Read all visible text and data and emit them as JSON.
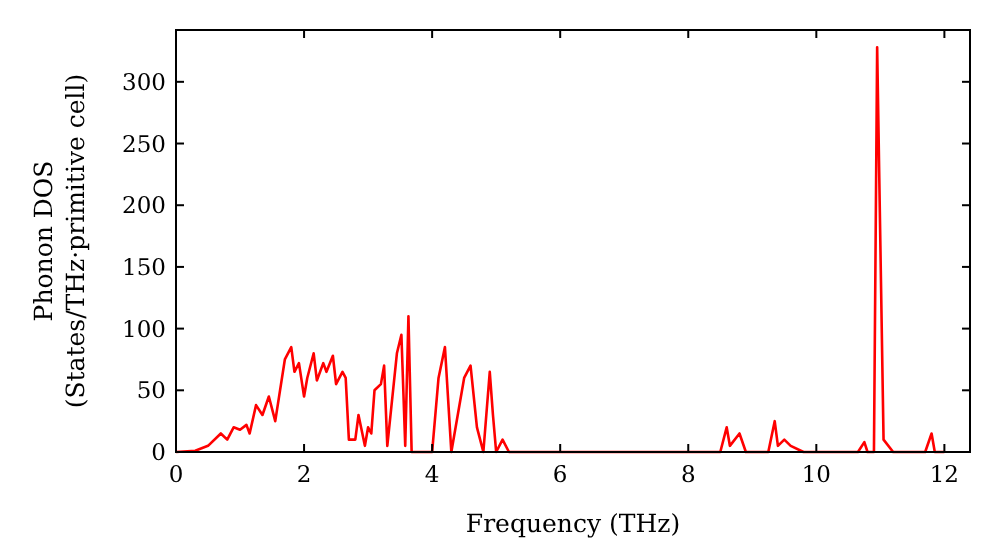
{
  "chart_data": {
    "type": "line",
    "xlabel": "Frequency (THz)",
    "ylabel": "Phonon DOS\n(States/THz·primitive cell)",
    "xlim": [
      0,
      12.4
    ],
    "ylim": [
      0,
      342
    ],
    "xticks": [
      0,
      2,
      4,
      6,
      8,
      10,
      12
    ],
    "yticks": [
      0,
      50,
      100,
      150,
      200,
      250,
      300
    ],
    "grid": false,
    "marker": "none",
    "line_style": "solid",
    "series": [
      {
        "color": "#ff0000",
        "x": [
          0,
          0.3,
          0.5,
          0.7,
          0.8,
          0.9,
          1.0,
          1.1,
          1.15,
          1.25,
          1.35,
          1.45,
          1.55,
          1.7,
          1.8,
          1.85,
          1.92,
          2.0,
          2.05,
          2.15,
          2.2,
          2.3,
          2.35,
          2.45,
          2.5,
          2.6,
          2.65,
          2.7,
          2.8,
          2.85,
          2.95,
          3.0,
          3.05,
          3.1,
          3.2,
          3.25,
          3.3,
          3.45,
          3.52,
          3.58,
          3.63,
          3.68,
          4.0,
          4.1,
          4.2,
          4.3,
          4.5,
          4.6,
          4.7,
          4.8,
          4.9,
          4.95,
          5.0,
          5.1,
          5.2,
          8.5,
          8.6,
          8.65,
          8.8,
          8.9,
          9.25,
          9.35,
          9.4,
          9.5,
          9.6,
          9.8,
          10.65,
          10.75,
          10.8,
          10.9,
          10.95,
          11.05,
          11.2,
          11.7,
          11.8,
          11.85,
          12.0
        ],
        "values": [
          0,
          1,
          5,
          15,
          10,
          20,
          18,
          22,
          15,
          38,
          30,
          45,
          25,
          75,
          85,
          65,
          72,
          45,
          60,
          80,
          58,
          72,
          65,
          78,
          55,
          65,
          60,
          10,
          10,
          30,
          5,
          20,
          15,
          50,
          55,
          70,
          5,
          80,
          95,
          5,
          110,
          0,
          0,
          60,
          85,
          0,
          60,
          70,
          20,
          0,
          65,
          30,
          0,
          10,
          0,
          0,
          20,
          5,
          15,
          0,
          0,
          25,
          5,
          10,
          5,
          0,
          0,
          8,
          0,
          0,
          328,
          10,
          0,
          0,
          15,
          0,
          0
        ]
      }
    ]
  }
}
